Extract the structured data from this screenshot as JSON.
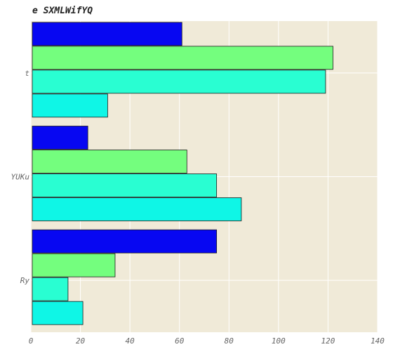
{
  "chart_data": {
    "type": "bar",
    "orientation": "horizontal",
    "title": "e SXMLWifYQ",
    "xlabel": "",
    "ylabel": "",
    "categories": [
      "t",
      "YUKu",
      "Ry"
    ],
    "xlim": [
      0,
      140
    ],
    "xticks": [
      0,
      20,
      40,
      60,
      80,
      100,
      120,
      140
    ],
    "grid": true,
    "legend": "none",
    "background_color": "#f0ead8",
    "grid_color": "#ffffff",
    "series": [
      {
        "color": "#0707f2",
        "values": [
          61,
          23,
          75
        ]
      },
      {
        "color": "#74fe7e",
        "values": [
          122,
          63,
          34
        ]
      },
      {
        "color": "#29fed2",
        "values": [
          119,
          75,
          15
        ]
      },
      {
        "color": "#0ff6e6",
        "values": [
          31,
          85,
          21
        ]
      }
    ]
  }
}
